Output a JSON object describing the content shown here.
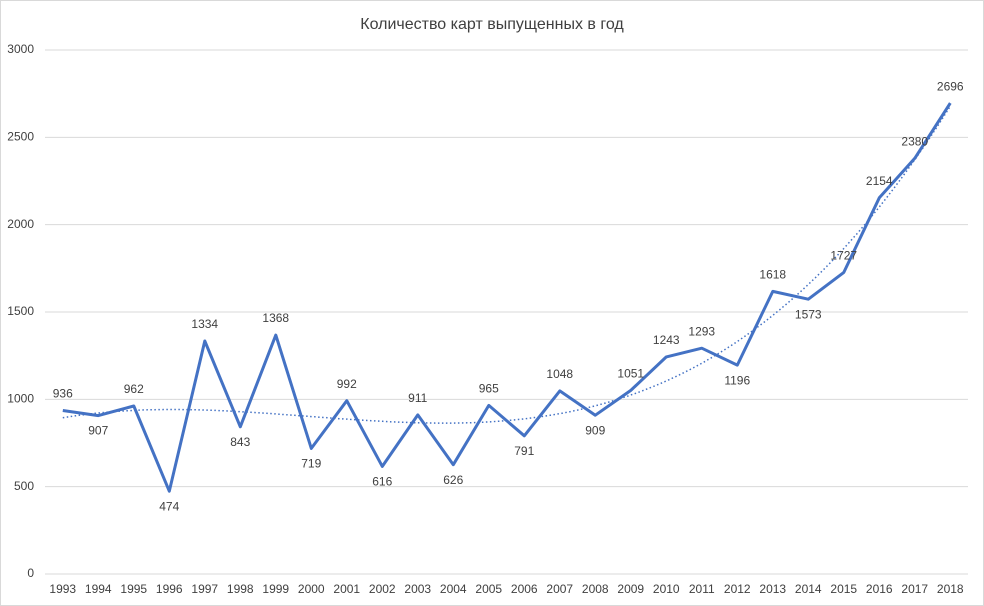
{
  "chart_data": {
    "type": "line",
    "title": "Количество карт выпущенных в год",
    "categories": [
      "1993",
      "1994",
      "1995",
      "1996",
      "1997",
      "1998",
      "1999",
      "2000",
      "2001",
      "2002",
      "2003",
      "2004",
      "2005",
      "2006",
      "2007",
      "2008",
      "2009",
      "2010",
      "2011",
      "2012",
      "2013",
      "2014",
      "2015",
      "2016",
      "2017",
      "2018"
    ],
    "values": [
      936,
      907,
      962,
      474,
      1334,
      843,
      1368,
      719,
      992,
      616,
      911,
      626,
      965,
      791,
      1048,
      909,
      1051,
      1243,
      1293,
      1196,
      1618,
      1573,
      1727,
      2154,
      2380,
      2696
    ],
    "color": "#4472c4",
    "ylim": [
      0,
      3000
    ],
    "yticks": [
      0,
      500,
      1000,
      1500,
      2000,
      2500,
      3000
    ],
    "grid": true,
    "trendline": "polynomial"
  }
}
